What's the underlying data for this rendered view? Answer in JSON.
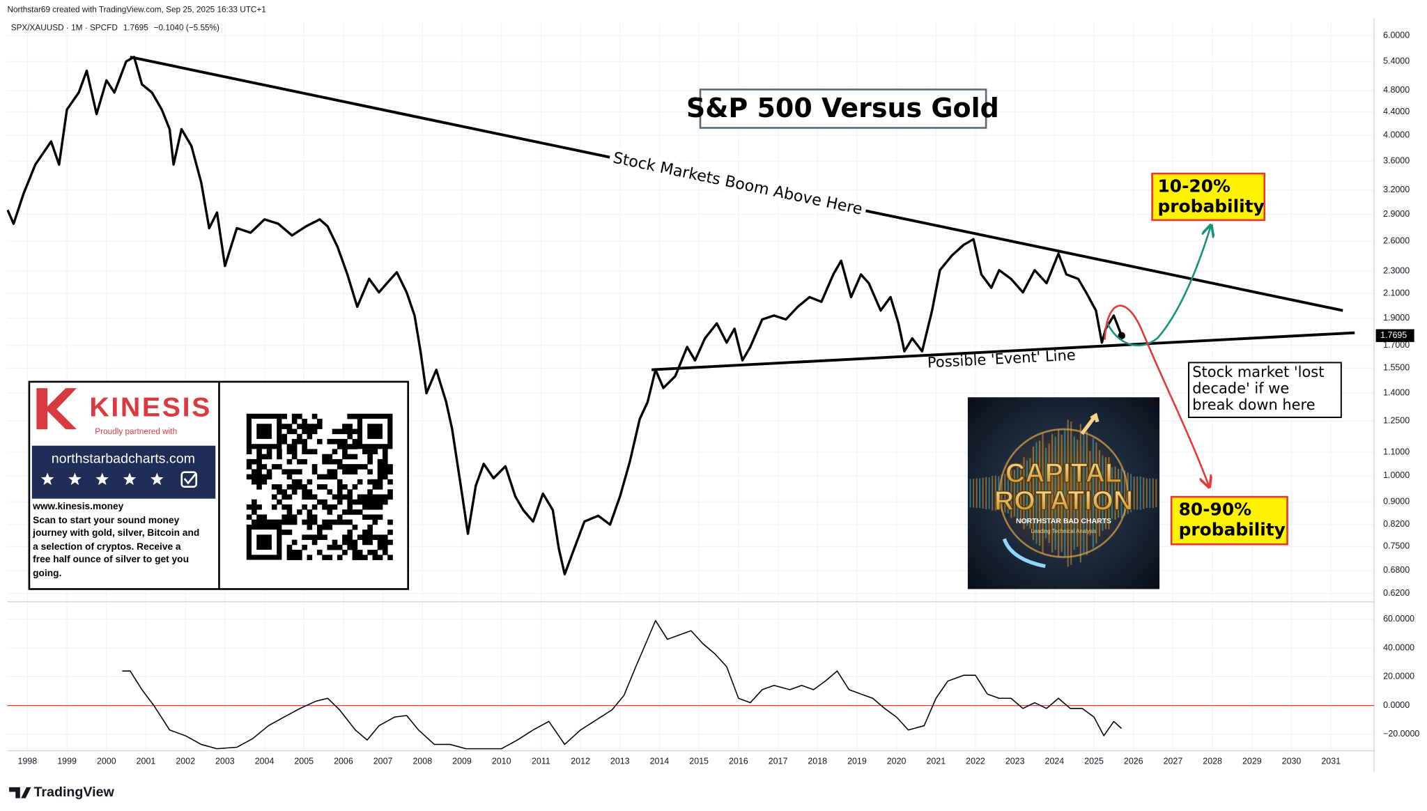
{
  "header": {
    "credit": "Northstar69 created with TradingView.com, Sep 25, 2025 16:33 UTC+1",
    "change": "−0.1040 (−5.55%)"
  },
  "chart_data": [
    {
      "type": "line",
      "title": "S&P 500 Versus Gold",
      "log_scale": true,
      "grid": true,
      "x": [
        1997.5,
        1997.65,
        1997.9,
        1998.2,
        1998.6,
        1998.8,
        1999.0,
        1999.3,
        1999.5,
        1999.75,
        2000.0,
        2000.2,
        2000.5,
        2000.7,
        2000.9,
        2001.15,
        2001.4,
        2001.6,
        2001.7,
        2001.9,
        2002.15,
        2002.4,
        2002.6,
        2002.8,
        2003.0,
        2003.3,
        2003.65,
        2004.0,
        2004.35,
        2004.7,
        2005.05,
        2005.4,
        2005.6,
        2005.85,
        2006.1,
        2006.35,
        2006.65,
        2006.9,
        2007.1,
        2007.35,
        2007.6,
        2007.8,
        2007.95,
        2008.1,
        2008.35,
        2008.6,
        2008.75,
        2009.0,
        2009.15,
        2009.35,
        2009.55,
        2009.8,
        2010.1,
        2010.35,
        2010.55,
        2010.8,
        2011.05,
        2011.3,
        2011.45,
        2011.6,
        2011.8,
        2012.1,
        2012.45,
        2012.75,
        2013.0,
        2013.25,
        2013.5,
        2013.7,
        2013.9,
        2014.1,
        2014.4,
        2014.7,
        2014.9,
        2015.15,
        2015.45,
        2015.7,
        2015.9,
        2016.1,
        2016.3,
        2016.6,
        2016.9,
        2017.2,
        2017.5,
        2017.8,
        2018.1,
        2018.4,
        2018.6,
        2018.85,
        2019.1,
        2019.3,
        2019.6,
        2019.85,
        2020.05,
        2020.2,
        2020.4,
        2020.65,
        2020.9,
        2021.1,
        2021.4,
        2021.7,
        2021.95,
        2022.15,
        2022.4,
        2022.6,
        2022.9,
        2023.2,
        2023.5,
        2023.8,
        2024.1,
        2024.3,
        2024.6,
        2024.8,
        2025.05,
        2025.2,
        2025.3,
        2025.5,
        2025.7
      ],
      "series": [
        {
          "name": "SPX/XAUUSD · 1M · SPCFD",
          "color": "#000000",
          "values": [
            2.95,
            2.79,
            3.15,
            3.55,
            3.9,
            3.55,
            4.44,
            4.76,
            5.2,
            4.36,
            5.0,
            4.76,
            5.4,
            5.5,
            4.92,
            4.76,
            4.44,
            4.1,
            3.55,
            4.1,
            3.83,
            3.3,
            2.74,
            2.92,
            2.35,
            2.74,
            2.69,
            2.84,
            2.79,
            2.66,
            2.76,
            2.84,
            2.76,
            2.54,
            2.27,
            1.99,
            2.23,
            2.11,
            2.19,
            2.29,
            2.11,
            1.92,
            1.66,
            1.4,
            1.54,
            1.35,
            1.21,
            0.93,
            0.79,
            0.96,
            1.05,
            0.99,
            1.04,
            0.92,
            0.87,
            0.83,
            0.93,
            0.87,
            0.745,
            0.67,
            0.73,
            0.83,
            0.85,
            0.82,
            0.92,
            1.06,
            1.26,
            1.35,
            1.54,
            1.43,
            1.5,
            1.69,
            1.6,
            1.75,
            1.86,
            1.72,
            1.82,
            1.6,
            1.69,
            1.89,
            1.92,
            1.89,
            1.99,
            2.07,
            2.03,
            2.27,
            2.4,
            2.07,
            2.27,
            2.19,
            1.96,
            2.07,
            1.86,
            1.66,
            1.75,
            1.66,
            1.96,
            2.31,
            2.45,
            2.56,
            2.62,
            2.27,
            2.15,
            2.31,
            2.23,
            2.11,
            2.31,
            2.19,
            2.47,
            2.27,
            2.23,
            2.11,
            1.96,
            1.72,
            1.82,
            1.92,
            1.7695
          ]
        }
      ],
      "xlim": [
        1997.49,
        2032.09
      ],
      "ylim": [
        0.601,
        6.32
      ],
      "yticks": [
        {
          "value": 6.0,
          "label": "6.0000"
        },
        {
          "value": 5.4,
          "label": "5.4000"
        },
        {
          "value": 4.8,
          "label": "4.8000"
        },
        {
          "value": 4.4,
          "label": "4.4000"
        },
        {
          "value": 4.0,
          "label": "4.0000"
        },
        {
          "value": 3.6,
          "label": "3.6000"
        },
        {
          "value": 3.2,
          "label": "3.2000"
        },
        {
          "value": 2.9,
          "label": "2.9000"
        },
        {
          "value": 2.6,
          "label": "2.6000"
        },
        {
          "value": 2.3,
          "label": "2.3000"
        },
        {
          "value": 2.1,
          "label": "2.1000"
        },
        {
          "value": 1.9,
          "label": "1.9000"
        },
        {
          "value": 1.7,
          "label": "1.7000"
        },
        {
          "value": 1.55,
          "label": "1.5500"
        },
        {
          "value": 1.4,
          "label": "1.4000"
        },
        {
          "value": 1.25,
          "label": "1.2500"
        },
        {
          "value": 1.1,
          "label": "1.1000"
        },
        {
          "value": 1.0,
          "label": "1.0000"
        },
        {
          "value": 0.9,
          "label": "0.9000"
        },
        {
          "value": 0.82,
          "label": "0.8200"
        },
        {
          "value": 0.75,
          "label": "0.7500"
        },
        {
          "value": 0.68,
          "label": "0.6800"
        },
        {
          "value": 0.62,
          "label": "0.6200"
        }
      ],
      "trendlines": [
        {
          "x": [
            2000.6,
            2031.3
          ],
          "values": [
            5.5,
            1.96
          ]
        },
        {
          "x": [
            2013.8,
            2031.6
          ],
          "values": [
            1.54,
            1.79
          ]
        }
      ],
      "annotations": {
        "upper_line": "Stock Markets Boom Above Here",
        "lower_line": "Possible 'Event' Line",
        "up_probability": [
          "10-20%",
          "probability"
        ],
        "down_probability": [
          "80-90%",
          "probability"
        ],
        "lost_decade": [
          "Stock market 'lost",
          "decade' if we",
          "break down here"
        ]
      }
    },
    {
      "type": "line",
      "x": [
        2000.4,
        2000.6,
        2000.9,
        2001.2,
        2001.6,
        2002.0,
        2002.4,
        2002.8,
        2003.3,
        2003.7,
        2004.1,
        2004.5,
        2004.9,
        2005.3,
        2005.6,
        2005.9,
        2006.3,
        2006.6,
        2006.9,
        2007.3,
        2007.6,
        2007.9,
        2008.3,
        2008.7,
        2009.1,
        2009.5,
        2010.0,
        2010.4,
        2010.8,
        2011.2,
        2011.6,
        2012.0,
        2012.4,
        2012.8,
        2013.1,
        2013.4,
        2013.7,
        2013.9,
        2014.2,
        2014.5,
        2014.8,
        2015.1,
        2015.4,
        2015.7,
        2016.0,
        2016.3,
        2016.6,
        2016.9,
        2017.3,
        2017.6,
        2017.9,
        2018.2,
        2018.5,
        2018.8,
        2019.1,
        2019.4,
        2019.7,
        2020.0,
        2020.3,
        2020.7,
        2021.0,
        2021.3,
        2021.7,
        2022.0,
        2022.3,
        2022.6,
        2022.9,
        2023.2,
        2023.5,
        2023.8,
        2024.1,
        2024.4,
        2024.7,
        2025.0,
        2025.25,
        2025.5,
        2025.7
      ],
      "series": [
        {
          "color": "#000000",
          "values": [
            24,
            24,
            11,
            0,
            -17,
            -21,
            -27,
            -30,
            -29,
            -23,
            -14,
            -8,
            -2,
            3,
            5,
            -3,
            -17,
            -24,
            -14,
            -8,
            -7,
            -17,
            -27,
            -27,
            -30,
            -30,
            -30,
            -24,
            -17,
            -11,
            -27,
            -17,
            -10,
            -3,
            7,
            27,
            46,
            59,
            46,
            49,
            52,
            43,
            36,
            27,
            5,
            2,
            11,
            14,
            11,
            14,
            11,
            17,
            24,
            11,
            8,
            5,
            -2,
            -8,
            -17,
            -14,
            5,
            17,
            21,
            21,
            8,
            5,
            5,
            -2,
            2,
            -2,
            5,
            -2,
            -2,
            -8,
            -21,
            -11,
            -16
          ]
        }
      ],
      "reference_line": {
        "value": 0,
        "color": "#e53935"
      },
      "grid": true,
      "xlim": [
        1997.49,
        2032.09
      ],
      "xticks": [
        1998,
        1999,
        2000,
        2001,
        2002,
        2003,
        2004,
        2005,
        2006,
        2007,
        2008,
        2009,
        2010,
        2011,
        2012,
        2013,
        2014,
        2015,
        2016,
        2017,
        2018,
        2019,
        2020,
        2021,
        2022,
        2023,
        2024,
        2025,
        2026,
        2027,
        2028,
        2029,
        2030,
        2031
      ],
      "ylim": [
        -31.4,
        71.4
      ],
      "yticks": [
        {
          "value": 60,
          "label": "60.0000"
        },
        {
          "value": 40,
          "label": "40.0000"
        },
        {
          "value": 20,
          "label": "20.0000"
        },
        {
          "value": 0,
          "label": "0.0000"
        },
        {
          "value": -20,
          "label": "−20.0000"
        }
      ]
    }
  ],
  "ad": {
    "brand": "KINESIS",
    "partner": "Proudly partnered with",
    "site": "northstarbadcharts.com",
    "url": "www.kinesis.money",
    "text": [
      "Scan to start your sound money",
      "journey with gold, silver, Bitcoin and",
      "a selection of cryptos. Receive a",
      "free half ounce of silver to get you",
      "going."
    ]
  },
  "artwork": {
    "line1": "CAPITAL",
    "line2": "ROTATION",
    "brand": "NORTHSTAR BAD CHARTS",
    "tagline": "Leading Technical Analysis"
  },
  "footer": {
    "logo": "TradingView"
  }
}
